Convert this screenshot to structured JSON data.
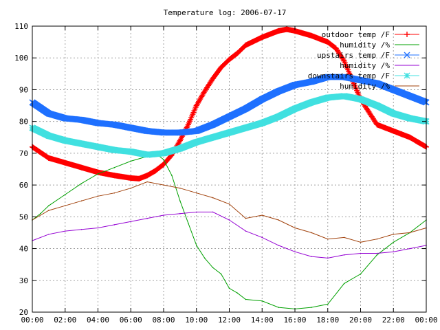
{
  "chart_data": {
    "type": "line",
    "title": "Temperature log: 2006-07-17",
    "xlabel": "",
    "ylabel": "",
    "xlim": [
      0,
      24
    ],
    "ylim": [
      20,
      110
    ],
    "grid": true,
    "legend_position": "top-right",
    "x_ticks": [
      {
        "v": 0,
        "label": "00:00"
      },
      {
        "v": 2,
        "label": "02:00"
      },
      {
        "v": 4,
        "label": "04:00"
      },
      {
        "v": 6,
        "label": "06:00"
      },
      {
        "v": 8,
        "label": "08:00"
      },
      {
        "v": 10,
        "label": "10:00"
      },
      {
        "v": 12,
        "label": "12:00"
      },
      {
        "v": 14,
        "label": "14:00"
      },
      {
        "v": 16,
        "label": "16:00"
      },
      {
        "v": 18,
        "label": "18:00"
      },
      {
        "v": 20,
        "label": "20:00"
      },
      {
        "v": 22,
        "label": "22:00"
      },
      {
        "v": 24,
        "label": "00:00"
      }
    ],
    "y_ticks": [
      20,
      30,
      40,
      50,
      60,
      70,
      80,
      90,
      100,
      110
    ],
    "series": [
      {
        "name": "outdoor temp /F",
        "color": "#ff0000",
        "marker": "plus",
        "points": [
          [
            0,
            72
          ],
          [
            1,
            68.5
          ],
          [
            2,
            67
          ],
          [
            3,
            65.5
          ],
          [
            4,
            64
          ],
          [
            5,
            63
          ],
          [
            6,
            62.2
          ],
          [
            6.5,
            62
          ],
          [
            7,
            63
          ],
          [
            7.5,
            64.5
          ],
          [
            8,
            66.5
          ],
          [
            8.5,
            69.5
          ],
          [
            9,
            74
          ],
          [
            9.5,
            79
          ],
          [
            10,
            85
          ],
          [
            10.5,
            89.5
          ],
          [
            11,
            93.5
          ],
          [
            11.5,
            97
          ],
          [
            12,
            99.5
          ],
          [
            12.5,
            101.5
          ],
          [
            13,
            104
          ],
          [
            14,
            106.5
          ],
          [
            14.5,
            107.5
          ],
          [
            15,
            108.5
          ],
          [
            15.5,
            109
          ],
          [
            16,
            108.5
          ],
          [
            17,
            107
          ],
          [
            17.5,
            106
          ],
          [
            18,
            105
          ],
          [
            18.5,
            103
          ],
          [
            19,
            99
          ],
          [
            19.5,
            93
          ],
          [
            20,
            87
          ],
          [
            20.5,
            83
          ],
          [
            21,
            79
          ],
          [
            21.5,
            78
          ],
          [
            22,
            77
          ],
          [
            22.5,
            76
          ],
          [
            23,
            75
          ],
          [
            23.5,
            73.5
          ],
          [
            24,
            72
          ]
        ]
      },
      {
        "name": "humidity /%",
        "color": "#00a000",
        "marker": "none",
        "points": [
          [
            0,
            49
          ],
          [
            0.5,
            51
          ],
          [
            1,
            53.5
          ],
          [
            2,
            57
          ],
          [
            3,
            60.5
          ],
          [
            4,
            63.5
          ],
          [
            5,
            65.5
          ],
          [
            6,
            67.5
          ],
          [
            7,
            69
          ],
          [
            7.5,
            70
          ],
          [
            8,
            68
          ],
          [
            8.5,
            63
          ],
          [
            9,
            55
          ],
          [
            9.5,
            48
          ],
          [
            10,
            41
          ],
          [
            10.5,
            37
          ],
          [
            11,
            34
          ],
          [
            11.5,
            32
          ],
          [
            12,
            27.5
          ],
          [
            12.5,
            26
          ],
          [
            13,
            24
          ],
          [
            14,
            23.5
          ],
          [
            15,
            21.5
          ],
          [
            16,
            21
          ],
          [
            17,
            21.5
          ],
          [
            18,
            22.5
          ],
          [
            19,
            29
          ],
          [
            20,
            32
          ],
          [
            21,
            38
          ],
          [
            22,
            42
          ],
          [
            23,
            45
          ],
          [
            24,
            49
          ]
        ]
      },
      {
        "name": "upstairs temp /F",
        "color": "#1e70ff",
        "marker": "cross",
        "points": [
          [
            0,
            86
          ],
          [
            1,
            82.5
          ],
          [
            2,
            81
          ],
          [
            3,
            80.5
          ],
          [
            4,
            79.5
          ],
          [
            5,
            79
          ],
          [
            6,
            78
          ],
          [
            7,
            77
          ],
          [
            8,
            76.5
          ],
          [
            9,
            76.5
          ],
          [
            10,
            77
          ],
          [
            11,
            79
          ],
          [
            12,
            81.5
          ],
          [
            13,
            84
          ],
          [
            14,
            87
          ],
          [
            15,
            89.5
          ],
          [
            16,
            91.5
          ],
          [
            17,
            92.5
          ],
          [
            18,
            94
          ],
          [
            19,
            94
          ],
          [
            20,
            93
          ],
          [
            21,
            92
          ],
          [
            22,
            90
          ],
          [
            23,
            88
          ],
          [
            24,
            86
          ]
        ]
      },
      {
        "name": "humidity /%",
        "color": "#9400d3",
        "marker": "none",
        "points": [
          [
            0,
            42.5
          ],
          [
            1,
            44.5
          ],
          [
            2,
            45.5
          ],
          [
            3,
            46
          ],
          [
            4,
            46.5
          ],
          [
            5,
            47.5
          ],
          [
            6,
            48.5
          ],
          [
            7,
            49.5
          ],
          [
            8,
            50.5
          ],
          [
            9,
            51
          ],
          [
            10,
            51.5
          ],
          [
            11,
            51.5
          ],
          [
            12,
            49
          ],
          [
            13,
            45.5
          ],
          [
            14,
            43.5
          ],
          [
            15,
            41
          ],
          [
            16,
            39
          ],
          [
            17,
            37.5
          ],
          [
            18,
            37
          ],
          [
            19,
            38
          ],
          [
            20,
            38.5
          ],
          [
            21,
            38.5
          ],
          [
            22,
            39
          ],
          [
            23,
            40
          ],
          [
            24,
            41
          ]
        ]
      },
      {
        "name": "downstairs temp /F",
        "color": "#40e0e0",
        "marker": "star",
        "points": [
          [
            0,
            78
          ],
          [
            1,
            75.5
          ],
          [
            2,
            74
          ],
          [
            3,
            73
          ],
          [
            4,
            72
          ],
          [
            5,
            71
          ],
          [
            6,
            70.5
          ],
          [
            7,
            69.5
          ],
          [
            8,
            70
          ],
          [
            9,
            71.5
          ],
          [
            10,
            73.5
          ],
          [
            11,
            75
          ],
          [
            12,
            76.5
          ],
          [
            13,
            78
          ],
          [
            14,
            79.5
          ],
          [
            15,
            81.5
          ],
          [
            16,
            84
          ],
          [
            17,
            86
          ],
          [
            18,
            87.5
          ],
          [
            19,
            88
          ],
          [
            20,
            87
          ],
          [
            21,
            85
          ],
          [
            22,
            82.5
          ],
          [
            23,
            81
          ],
          [
            24,
            80
          ]
        ]
      },
      {
        "name": "humidity /%",
        "color": "#a0400a",
        "marker": "none",
        "points": [
          [
            0,
            49
          ],
          [
            1,
            52
          ],
          [
            2,
            53.5
          ],
          [
            3,
            55
          ],
          [
            4,
            56.5
          ],
          [
            5,
            57.5
          ],
          [
            6,
            59
          ],
          [
            7,
            61
          ],
          [
            8,
            60
          ],
          [
            9,
            59
          ],
          [
            10,
            57.5
          ],
          [
            11,
            56
          ],
          [
            12,
            54
          ],
          [
            13,
            49.5
          ],
          [
            14,
            50.5
          ],
          [
            15,
            49
          ],
          [
            16,
            46.5
          ],
          [
            17,
            45
          ],
          [
            18,
            43
          ],
          [
            19,
            43.5
          ],
          [
            20,
            42
          ],
          [
            21,
            43
          ],
          [
            22,
            44.5
          ],
          [
            23,
            45
          ],
          [
            24,
            46.5
          ]
        ]
      }
    ]
  }
}
